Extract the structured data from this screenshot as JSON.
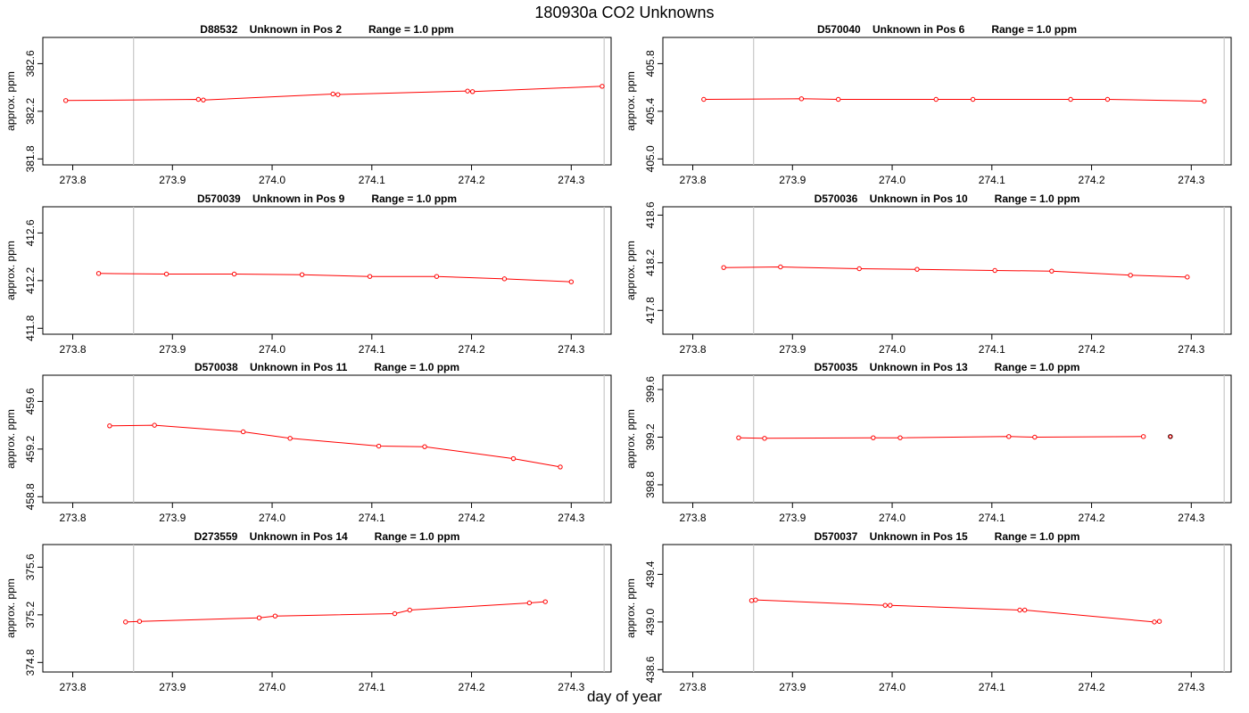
{
  "page": {
    "title": "180930a  CO2 Unknowns",
    "xlabel": "day of year"
  },
  "chart_data": [
    {
      "type": "line",
      "title": "D88532    Unknown in Pos 2         Range = 1.0 ppm",
      "ylabel": "approx. ppm",
      "xlim": [
        273.77,
        274.34
      ],
      "ylim": [
        381.75,
        382.82
      ],
      "xticks": [
        273.8,
        273.9,
        274.0,
        274.1,
        274.2,
        274.3
      ],
      "xtick_labels": [
        "273.8",
        "273.9",
        "274.0",
        "274.1",
        "274.2",
        "274.3"
      ],
      "yticks": [
        381.8,
        382.2,
        382.6
      ],
      "ytick_labels": [
        "381.8",
        "382.2",
        "382.6"
      ],
      "vlines": [
        273.861,
        274.333
      ],
      "series": [
        {
          "color": "#ff0000",
          "x": [
            273.793,
            273.926,
            273.931,
            274.061,
            274.066,
            274.196,
            274.201,
            274.331
          ],
          "y": [
            382.29,
            382.3,
            382.295,
            382.345,
            382.34,
            382.37,
            382.365,
            382.41
          ]
        }
      ]
    },
    {
      "type": "line",
      "title": "D570040    Unknown in Pos 6         Range = 1.0 ppm",
      "ylabel": "approx. ppm",
      "xlim": [
        273.77,
        274.34
      ],
      "ylim": [
        404.95,
        406.02
      ],
      "xticks": [
        273.8,
        273.9,
        274.0,
        274.1,
        274.2,
        274.3
      ],
      "xtick_labels": [
        "273.8",
        "273.9",
        "274.0",
        "274.1",
        "274.2",
        "274.3"
      ],
      "yticks": [
        405.0,
        405.4,
        405.8
      ],
      "ytick_labels": [
        "405.0",
        "405.4",
        "405.8"
      ],
      "vlines": [
        273.861,
        274.333
      ],
      "series": [
        {
          "color": "#ff0000",
          "x": [
            273.811,
            273.909,
            273.946,
            274.044,
            274.081,
            274.179,
            274.216,
            274.313
          ],
          "y": [
            405.5,
            405.505,
            405.5,
            405.5,
            405.5,
            405.5,
            405.5,
            405.485
          ]
        }
      ]
    },
    {
      "type": "line",
      "title": "D570039    Unknown in Pos 9         Range = 1.0 ppm",
      "ylabel": "approx. ppm",
      "xlim": [
        273.77,
        274.34
      ],
      "ylim": [
        411.75,
        412.82
      ],
      "xticks": [
        273.8,
        273.9,
        274.0,
        274.1,
        274.2,
        274.3
      ],
      "xtick_labels": [
        "273.8",
        "273.9",
        "274.0",
        "274.1",
        "274.2",
        "274.3"
      ],
      "yticks": [
        411.8,
        412.2,
        412.6
      ],
      "ytick_labels": [
        "411.8",
        "412.2",
        "412.6"
      ],
      "vlines": [
        273.861,
        274.333
      ],
      "series": [
        {
          "color": "#ff0000",
          "x": [
            273.826,
            273.894,
            273.962,
            274.03,
            274.098,
            274.165,
            274.233,
            274.3
          ],
          "y": [
            412.26,
            412.255,
            412.255,
            412.25,
            412.235,
            412.235,
            412.215,
            412.19
          ]
        }
      ]
    },
    {
      "type": "line",
      "title": "D570036    Unknown in Pos 10         Range = 1.0 ppm",
      "ylabel": "approx. ppm",
      "xlim": [
        273.77,
        274.34
      ],
      "ylim": [
        417.6,
        418.67
      ],
      "xticks": [
        273.8,
        273.9,
        274.0,
        274.1,
        274.2,
        274.3
      ],
      "xtick_labels": [
        "273.8",
        "273.9",
        "274.0",
        "274.1",
        "274.2",
        "274.3"
      ],
      "yticks": [
        417.8,
        418.2,
        418.6
      ],
      "ytick_labels": [
        "417.8",
        "418.2",
        "418.6"
      ],
      "vlines": [
        273.861,
        274.333
      ],
      "series": [
        {
          "color": "#ff0000",
          "x": [
            273.831,
            273.888,
            273.967,
            274.025,
            274.103,
            274.16,
            274.239,
            274.296
          ],
          "y": [
            418.16,
            418.165,
            418.15,
            418.145,
            418.135,
            418.13,
            418.095,
            418.08
          ]
        }
      ]
    },
    {
      "type": "line",
      "title": "D570038    Unknown in Pos 11         Range = 1.0 ppm",
      "ylabel": "approx. ppm",
      "xlim": [
        273.77,
        274.34
      ],
      "ylim": [
        458.75,
        459.82
      ],
      "xticks": [
        273.8,
        273.9,
        274.0,
        274.1,
        274.2,
        274.3
      ],
      "xtick_labels": [
        "273.8",
        "273.9",
        "274.0",
        "274.1",
        "274.2",
        "274.3"
      ],
      "yticks": [
        458.8,
        459.2,
        459.6
      ],
      "ytick_labels": [
        "458.8",
        "459.2",
        "459.6"
      ],
      "vlines": [
        273.861,
        274.333
      ],
      "series": [
        {
          "color": "#ff0000",
          "x": [
            273.837,
            273.882,
            273.971,
            274.018,
            274.107,
            274.153,
            274.242,
            274.289
          ],
          "y": [
            459.395,
            459.4,
            459.345,
            459.29,
            459.225,
            459.22,
            459.12,
            459.05
          ]
        }
      ]
    },
    {
      "type": "line",
      "title": "D570035    Unknown in Pos 13         Range = 1.0 ppm",
      "ylabel": "approx. ppm",
      "xlim": [
        273.77,
        274.34
      ],
      "ylim": [
        398.65,
        399.72
      ],
      "xticks": [
        273.8,
        273.9,
        274.0,
        274.1,
        274.2,
        274.3
      ],
      "xtick_labels": [
        "273.8",
        "273.9",
        "274.0",
        "274.1",
        "274.2",
        "274.3"
      ],
      "yticks": [
        398.8,
        399.2,
        399.6
      ],
      "ytick_labels": [
        "398.8",
        "399.2",
        "399.6"
      ],
      "vlines": [
        273.861,
        274.333
      ],
      "series": [
        {
          "color": "#ff0000",
          "x": [
            273.846,
            273.872,
            273.981,
            274.008,
            274.117,
            274.143,
            274.252
          ],
          "y": [
            399.195,
            399.19,
            399.195,
            399.195,
            399.205,
            399.2,
            399.205
          ]
        }
      ],
      "extra_point": {
        "x": 274.279,
        "y": 399.205,
        "color": "#000000"
      }
    },
    {
      "type": "line",
      "title": "D273559    Unknown in Pos 14         Range = 1.0 ppm",
      "ylabel": "approx. ppm",
      "xlim": [
        273.77,
        274.34
      ],
      "ylim": [
        374.72,
        375.79
      ],
      "xticks": [
        273.8,
        273.9,
        274.0,
        274.1,
        274.2,
        274.3
      ],
      "xtick_labels": [
        "273.8",
        "273.9",
        "274.0",
        "274.1",
        "274.2",
        "274.3"
      ],
      "yticks": [
        374.8,
        375.2,
        375.6
      ],
      "ytick_labels": [
        "374.8",
        "375.2",
        "375.6"
      ],
      "vlines": [
        273.861,
        274.333
      ],
      "series": [
        {
          "color": "#ff0000",
          "x": [
            273.853,
            273.867,
            273.987,
            274.003,
            274.123,
            274.138,
            274.258,
            274.274
          ],
          "y": [
            375.14,
            375.145,
            375.175,
            375.19,
            375.21,
            375.24,
            375.3,
            375.31
          ]
        }
      ]
    },
    {
      "type": "line",
      "title": "D570037    Unknown in Pos 15         Range = 1.0 ppm",
      "ylabel": "approx. ppm",
      "xlim": [
        273.77,
        274.34
      ],
      "ylim": [
        438.58,
        439.65
      ],
      "xticks": [
        273.8,
        273.9,
        274.0,
        274.1,
        274.2,
        274.3
      ],
      "xtick_labels": [
        "273.8",
        "273.9",
        "274.0",
        "274.1",
        "274.2",
        "274.3"
      ],
      "yticks": [
        438.6,
        439.0,
        439.4
      ],
      "ytick_labels": [
        "438.6",
        "439.0",
        "439.4"
      ],
      "vlines": [
        273.861,
        274.333
      ],
      "series": [
        {
          "color": "#ff0000",
          "x": [
            273.859,
            273.863,
            273.993,
            273.998,
            274.128,
            274.133,
            274.263,
            274.268
          ],
          "y": [
            439.18,
            439.185,
            439.14,
            439.14,
            439.1,
            439.1,
            439.0,
            439.005
          ]
        }
      ]
    }
  ]
}
